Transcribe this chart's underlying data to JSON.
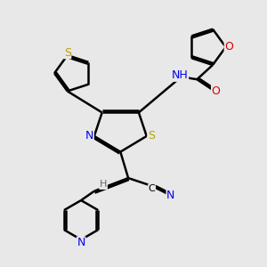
{
  "bg_color": "#e8e8e8",
  "bond_color": "#000000",
  "bond_width": 1.8,
  "ao": 0.07,
  "atom_colors": {
    "S": "#b8a000",
    "N": "#0000ee",
    "O": "#dd0000",
    "C": "#000000",
    "H": "#666666"
  },
  "fs": 9,
  "fs2": 8
}
